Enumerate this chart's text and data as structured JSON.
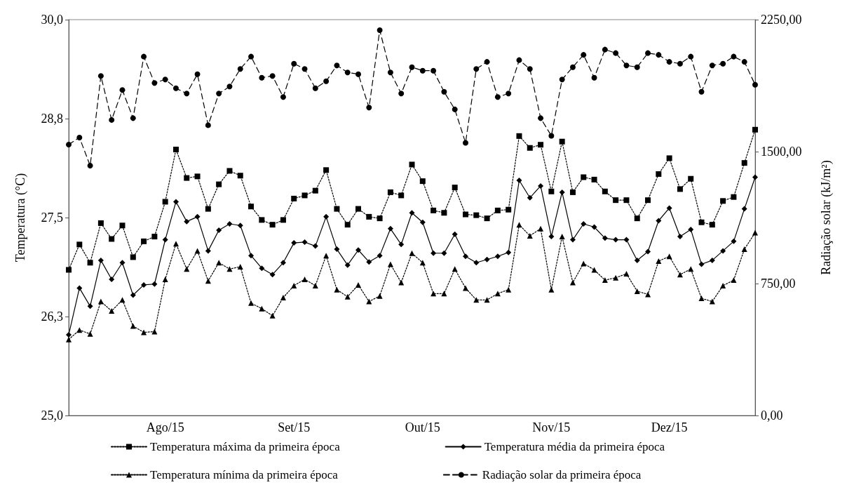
{
  "chart_data": {
    "type": "line",
    "xlabel": null,
    "ylabel": "Temperatura (°C)",
    "y2label": "Radiação solar (kJ/m²)",
    "categories": [
      null,
      null,
      null,
      null,
      null,
      null,
      null,
      null,
      null,
      "Ago/15",
      null,
      null,
      null,
      null,
      null,
      null,
      null,
      null,
      null,
      null,
      null,
      "Set/15",
      null,
      null,
      null,
      null,
      null,
      null,
      null,
      null,
      null,
      null,
      null,
      "Out/15",
      null,
      null,
      null,
      null,
      null,
      null,
      null,
      null,
      null,
      null,
      null,
      "Nov/15",
      null,
      null,
      null,
      null,
      null,
      null,
      null,
      null,
      null,
      null,
      "Dez/15",
      null,
      null,
      null,
      null,
      null,
      null,
      null,
      null
    ],
    "series": [
      {
        "name": "Temperatura máxima da primeira época",
        "color": "#000000",
        "marker": "square",
        "line_style": "dotted",
        "values": [
          26.84,
          27.16,
          26.93,
          27.43,
          27.23,
          27.4,
          27.0,
          27.2,
          27.26,
          27.7,
          28.36,
          28.0,
          28.02,
          27.61,
          27.92,
          28.09,
          28.03,
          27.64,
          27.47,
          27.41,
          27.47,
          27.74,
          27.78,
          27.84,
          28.1,
          27.61,
          27.41,
          27.61,
          27.51,
          27.49,
          27.82,
          27.78,
          28.17,
          27.96,
          27.59,
          27.56,
          27.88,
          27.54,
          27.53,
          27.49,
          27.59,
          27.6,
          28.53,
          28.38,
          28.42,
          27.83,
          28.46,
          27.82,
          28.01,
          27.98,
          27.83,
          27.72,
          27.72,
          27.49,
          27.72,
          28.05,
          28.25,
          27.86,
          27.99,
          27.44,
          27.41,
          27.71,
          27.76,
          28.19,
          28.61
        ]
      },
      {
        "name": "Temperatura média da primeira época",
        "color": "#000000",
        "marker": "diamond",
        "line_style": "solid",
        "values": [
          26.02,
          26.61,
          26.38,
          26.96,
          26.72,
          26.93,
          26.52,
          26.65,
          26.66,
          27.22,
          27.7,
          27.45,
          27.51,
          27.08,
          27.34,
          27.42,
          27.4,
          27.02,
          26.86,
          26.78,
          26.93,
          27.18,
          27.19,
          27.14,
          27.51,
          27.1,
          26.9,
          27.09,
          26.94,
          27.02,
          27.36,
          27.16,
          27.56,
          27.44,
          27.05,
          27.05,
          27.29,
          27.01,
          26.93,
          26.97,
          27.01,
          27.06,
          27.97,
          27.75,
          27.9,
          27.26,
          27.82,
          27.22,
          27.42,
          27.38,
          27.24,
          27.22,
          27.22,
          26.96,
          27.07,
          27.46,
          27.62,
          27.26,
          27.35,
          26.91,
          26.96,
          27.08,
          27.2,
          27.61,
          28.01
        ]
      },
      {
        "name": "Temperatura mínima da primeira época",
        "color": "#000000",
        "marker": "triangle",
        "line_style": "dotted",
        "values": [
          25.96,
          26.08,
          26.03,
          26.44,
          26.32,
          26.46,
          26.13,
          26.05,
          26.06,
          26.72,
          27.17,
          26.85,
          27.08,
          26.7,
          26.93,
          26.85,
          26.88,
          26.42,
          26.35,
          26.26,
          26.49,
          26.64,
          26.72,
          26.64,
          27.02,
          26.59,
          26.5,
          26.65,
          26.44,
          26.51,
          26.91,
          26.68,
          27.05,
          26.93,
          26.54,
          26.54,
          26.85,
          26.61,
          26.46,
          26.46,
          26.54,
          26.59,
          27.41,
          27.27,
          27.36,
          26.59,
          27.26,
          26.68,
          26.92,
          26.84,
          26.71,
          26.74,
          26.79,
          26.57,
          26.53,
          26.95,
          27.01,
          26.78,
          26.85,
          26.48,
          26.44,
          26.64,
          26.71,
          27.1,
          27.31
        ]
      },
      {
        "name": "Radiação solar da primeira época",
        "color": "#000000",
        "marker": "circle",
        "line_style": "dashed",
        "axis": "y2",
        "values": [
          1540,
          1580,
          1420,
          1930,
          1680,
          1850,
          1690,
          2040,
          1890,
          1910,
          1860,
          1830,
          1940,
          1650,
          1830,
          1870,
          1970,
          2040,
          1920,
          1930,
          1810,
          2000,
          1970,
          1860,
          1900,
          1990,
          1950,
          1940,
          1750,
          2190,
          1950,
          1830,
          1980,
          1960,
          1960,
          1840,
          1740,
          1550,
          1970,
          2010,
          1810,
          1830,
          2020,
          1970,
          1690,
          1590,
          1910,
          1980,
          2050,
          1920,
          2080,
          2060,
          1990,
          1980,
          2060,
          2050,
          2010,
          2000,
          2040,
          1840,
          1990,
          2000,
          2040,
          2010,
          1880
        ]
      }
    ],
    "ylim": [
      25,
      30
    ],
    "yticks": [
      {
        "value": 25,
        "label": "25,0"
      },
      {
        "value": 26.25,
        "label": "26,3"
      },
      {
        "value": 27.5,
        "label": "27,5"
      },
      {
        "value": 28.75,
        "label": "28,8"
      },
      {
        "value": 30,
        "label": "30,0"
      }
    ],
    "y2lim": [
      0,
      2250
    ],
    "y2ticks": [
      {
        "value": 0,
        "label": "0,00"
      },
      {
        "value": 750,
        "label": "750,00"
      },
      {
        "value": 1500,
        "label": "1500,00"
      },
      {
        "value": 2250,
        "label": "2250,00"
      }
    ],
    "grid": false,
    "legend": "bottom"
  }
}
